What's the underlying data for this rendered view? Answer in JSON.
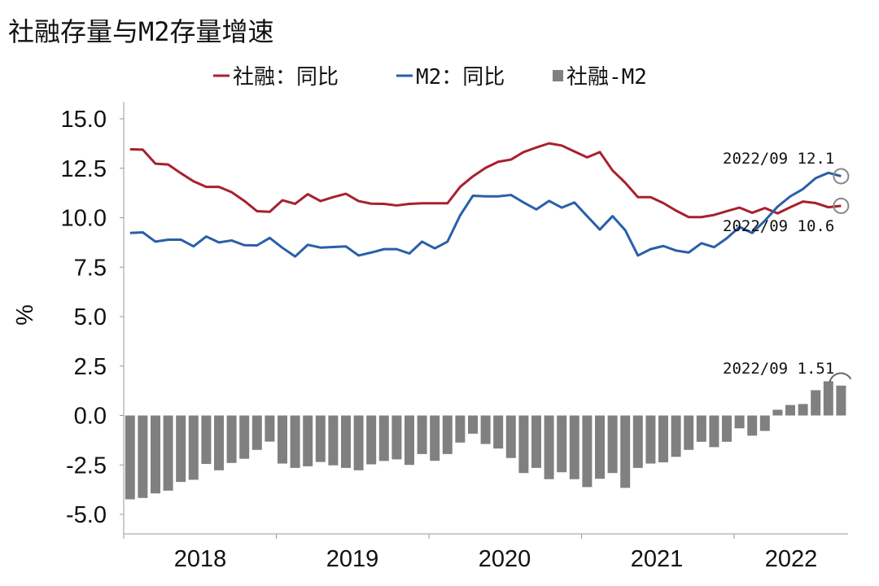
{
  "title": "社融存量与M2存量增速",
  "chart_data": {
    "type": "line+bar",
    "title": "社融存量与M2存量增速",
    "xlabel": "",
    "ylabel": "%",
    "ylim": [
      -5.0,
      15.0
    ],
    "yticks": [
      "15.0",
      "12.5",
      "10.0",
      "7.5",
      "5.0",
      "2.5",
      "0.0",
      "-2.5",
      "-5.0"
    ],
    "ytick_values": [
      15,
      12.5,
      10,
      7.5,
      5,
      2.5,
      0,
      -2.5,
      -5
    ],
    "xticks": [
      "2018",
      "2019",
      "2020",
      "2021",
      "2022"
    ],
    "x_range": "2018/01 - 2022/09 monthly",
    "legend_position": "top-center",
    "series": [
      {
        "name": "社融：同比",
        "type": "line",
        "color": "#a8202e",
        "values": [
          13.46,
          13.44,
          12.73,
          12.69,
          12.25,
          11.84,
          11.56,
          11.56,
          11.29,
          10.85,
          10.33,
          10.3,
          10.88,
          10.7,
          11.19,
          10.84,
          11.04,
          11.21,
          10.84,
          10.71,
          10.7,
          10.62,
          10.7,
          10.73,
          10.73,
          10.73,
          11.56,
          12.09,
          12.52,
          12.83,
          12.94,
          13.32,
          13.55,
          13.76,
          13.65,
          13.35,
          13.05,
          13.32,
          12.39,
          11.77,
          11.04,
          11.04,
          10.74,
          10.36,
          10.03,
          10.03,
          10.14,
          10.33,
          10.51,
          10.25,
          10.49,
          10.22,
          10.53,
          10.82,
          10.74,
          10.53,
          10.6
        ]
      },
      {
        "name": "M2：同比",
        "type": "line",
        "color": "#2a5fa8",
        "values": [
          9.23,
          9.26,
          8.79,
          8.89,
          8.89,
          8.55,
          9.05,
          8.75,
          8.85,
          8.61,
          8.6,
          8.98,
          8.48,
          8.04,
          8.63,
          8.49,
          8.52,
          8.55,
          8.09,
          8.24,
          8.41,
          8.41,
          8.19,
          8.79,
          8.45,
          8.79,
          10.12,
          11.11,
          11.08,
          11.08,
          11.15,
          10.77,
          10.42,
          10.85,
          10.51,
          10.77,
          10.08,
          9.4,
          10.08,
          9.37,
          8.09,
          8.41,
          8.57,
          8.34,
          8.24,
          8.71,
          8.51,
          8.96,
          9.53,
          9.23,
          9.85,
          10.56,
          11.08,
          11.45,
          12.0,
          12.27,
          12.1
        ]
      },
      {
        "name": "社融-M2",
        "type": "bar",
        "color": "#808080",
        "values": [
          -4.24,
          -4.17,
          -3.94,
          -3.8,
          -3.36,
          -3.25,
          -2.45,
          -2.77,
          -2.4,
          -2.19,
          -1.74,
          -1.32,
          -2.43,
          -2.65,
          -2.57,
          -2.35,
          -2.52,
          -2.65,
          -2.77,
          -2.47,
          -2.3,
          -2.22,
          -2.5,
          -1.95,
          -2.29,
          -1.95,
          -1.37,
          -0.92,
          -1.44,
          -1.67,
          -2.15,
          -2.91,
          -2.65,
          -3.22,
          -2.87,
          -3.22,
          -3.62,
          -3.2,
          -2.91,
          -3.66,
          -2.65,
          -2.43,
          -2.37,
          -2.09,
          -1.74,
          -1.33,
          -1.6,
          -1.33,
          -0.65,
          -1.02,
          -0.78,
          0.29,
          0.53,
          0.58,
          1.28,
          1.73,
          1.51
        ]
      }
    ],
    "annotations": [
      "2022/09  12.1",
      "2022/09  10.6",
      "2022/09  1.51"
    ]
  }
}
